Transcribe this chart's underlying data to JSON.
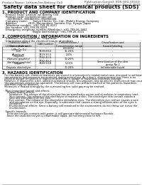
{
  "background_color": "#ffffff",
  "header_left": "Product Name: Lithium Ion Battery Cell",
  "header_right_line1": "Publication Control: SDS-003-00010",
  "header_right_line2": "Established / Revision: Dec.7.2010",
  "title": "Safety data sheet for chemical products (SDS)",
  "section1_title": "1. PRODUCT AND COMPANY IDENTIFICATION",
  "section1_lines": [
    "  · Product name: Lithium Ion Battery Cell",
    "  · Product code: Cylindrical-type cell",
    "      041866601, 041866502, 041866504",
    "  · Company name:      Sanyo Electric Co., Ltd., Mobile Energy Company",
    "  · Address:            2031, Kannondani, Sumoto-City, Hyogo, Japan",
    "  · Telephone number:  +81-799-26-4111",
    "  · Fax number: +81-799-26-4129",
    "  · Emergency telephone number (Weekday): +81-799-26-3842",
    "                                  (Night and holiday): +81-799-26-3101"
  ],
  "section2_title": "2. COMPOSITION / INFORMATION ON INGREDIENTS",
  "section2_intro": "  · Substance or preparation: Preparation",
  "section2_sub": "  · Information about the chemical nature of product:",
  "table_header_labels": [
    "Chemical name /\nGeneral name",
    "CAS number",
    "Concentration /\nConcentration range",
    "Classification and\nhazard labeling"
  ],
  "table_rows": [
    [
      "Lithium cobalt oxide\n(LiMn·Co·O₄)",
      "-",
      "(30-60%)",
      "-"
    ],
    [
      "Iron",
      "7439-89-6",
      "15-20%",
      "-"
    ],
    [
      "Aluminum",
      "7429-90-5",
      "2-6%",
      "-"
    ],
    [
      "Graphite\n(Natural graphite)\n(Artificial graphite)",
      "7782-42-5\n7782-44-2",
      "10-20%",
      "-"
    ],
    [
      "Copper",
      "7440-50-8",
      "5-15%",
      "Sensitization of the skin\ngroup No.2"
    ],
    [
      "Organic electrolyte",
      "-",
      "10-20%",
      "Inflammable liquid"
    ]
  ],
  "section3_title": "3. HAZARDS IDENTIFICATION",
  "section3_text": [
    "   For this battery cell, chemical materials are stored in a hermetically sealed metal case, designed to withstand",
    "   temperatures and pressures encountered during normal use. As a result, during normal use, there is no",
    "   physical danger of ignition or explosion and there is danger of hazardous materials leakage.",
    "   However, if exposed to a fire, added mechanical shocks, decomposes, and an electric short-circuit may cause",
    "   the gas release vent(not be operated). The battery cell case will be breached of fire-patterns, hazardous",
    "   materials may be released.",
    "   Moreover, if heated strongly by the surrounding fire, solid gas may be emitted.",
    "",
    "  · Most important hazard and effects:",
    "      Human health effects:",
    "         Inhalation: The release of the electrolyte has an anesthetics action and stimulates in respiratory tract.",
    "         Skin contact: The release of the electrolyte stimulates a skin. The electrolyte skin contact causes a",
    "         sore and stimulation on the skin.",
    "         Eye contact: The release of the electrolyte stimulates eyes. The electrolyte eye contact causes a sore",
    "         and stimulation on the eye. Especially, a substance that causes a strong inflammation of the eyes is",
    "         contained.",
    "         Environmental effects: Since a battery cell remained in the environment, do not throw out it into the",
    "         environment.",
    "",
    "  · Specific hazards:",
    "      If the electrolyte contacts with water, it will generate detrimental hydrogen fluoride.",
    "      Since the used electrolyte is inflammable liquid, do not bring close to fire."
  ],
  "footer_line": true
}
